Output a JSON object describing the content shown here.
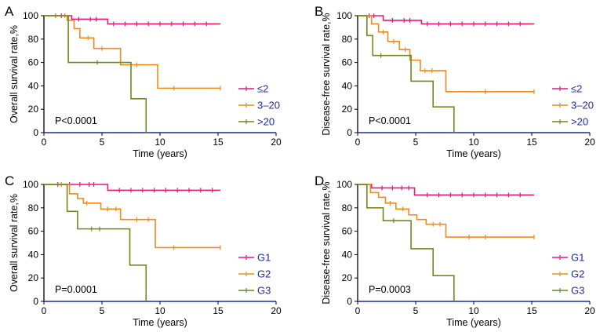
{
  "colors": {
    "series1": "#e5197a",
    "series2": "#f08a1c",
    "series3": "#6e8a1c",
    "axis": "#000000",
    "baseline": "#1f2a9e"
  },
  "chart_data": [
    {
      "type": "line",
      "panel": "A",
      "ylabel": "Overall survival rate,%",
      "xlabel": "Time (years)",
      "xlim": [
        0,
        20
      ],
      "ylim": [
        0,
        100
      ],
      "xticks": [
        "0",
        "5",
        "10",
        "15",
        "20"
      ],
      "yticks": [
        "0",
        "20",
        "40",
        "60",
        "80",
        "100"
      ],
      "pvalue": "P<0.0001",
      "legend_position": "right",
      "series": [
        {
          "name": "≤2",
          "steps": [
            [
              0,
              100
            ],
            [
              2.4,
              97
            ],
            [
              5.5,
              93
            ],
            [
              15.2,
              93
            ]
          ],
          "censors": [
            [
              1,
              100
            ],
            [
              1.5,
              100
            ],
            [
              3,
              97
            ],
            [
              4,
              97
            ],
            [
              4.5,
              97
            ],
            [
              6,
              93
            ],
            [
              7,
              93
            ],
            [
              8,
              93
            ],
            [
              9,
              93
            ],
            [
              10,
              93
            ],
            [
              11,
              93
            ],
            [
              12,
              93
            ],
            [
              13,
              93
            ],
            [
              14,
              93
            ]
          ]
        },
        {
          "name": "3–20",
          "steps": [
            [
              0,
              100
            ],
            [
              2,
              96
            ],
            [
              2.6,
              89
            ],
            [
              3.1,
              81
            ],
            [
              4.3,
              72
            ],
            [
              5.7,
              72
            ],
            [
              6.6,
              58
            ],
            [
              9.8,
              38
            ],
            [
              15.2,
              38
            ]
          ],
          "censors": [
            [
              1,
              100
            ],
            [
              1.8,
              100
            ],
            [
              3.8,
              81
            ],
            [
              5,
              72
            ],
            [
              8,
              58
            ],
            [
              11.2,
              38
            ],
            [
              15.2,
              38
            ]
          ]
        },
        {
          "name": ">20",
          "steps": [
            [
              0,
              100
            ],
            [
              2.1,
              60
            ],
            [
              6.3,
              60
            ],
            [
              7.5,
              29
            ],
            [
              8.8,
              0
            ]
          ],
          "censors": [
            [
              4.6,
              60
            ]
          ]
        }
      ]
    },
    {
      "type": "line",
      "panel": "B",
      "ylabel": "Disease-free survival rate,%",
      "xlabel": "Time (years)",
      "xlim": [
        0,
        20
      ],
      "ylim": [
        0,
        100
      ],
      "xticks": [
        "0",
        "5",
        "10",
        "15",
        "20"
      ],
      "yticks": [
        "0",
        "20",
        "40",
        "60",
        "80",
        "100"
      ],
      "pvalue": "P<0.0001",
      "legend_position": "right",
      "series": [
        {
          "name": "≤2",
          "steps": [
            [
              0,
              100
            ],
            [
              2.2,
              96
            ],
            [
              5.5,
              93
            ],
            [
              15.2,
              93
            ]
          ],
          "censors": [
            [
              1,
              100
            ],
            [
              1.4,
              100
            ],
            [
              3,
              96
            ],
            [
              4,
              96
            ],
            [
              4.5,
              96
            ],
            [
              6,
              93
            ],
            [
              7,
              93
            ],
            [
              8,
              93
            ],
            [
              9,
              93
            ],
            [
              10,
              93
            ],
            [
              11,
              93
            ],
            [
              12,
              93
            ],
            [
              13,
              93
            ],
            [
              14,
              93
            ]
          ]
        },
        {
          "name": "3–20",
          "steps": [
            [
              0,
              100
            ],
            [
              1.2,
              93
            ],
            [
              1.8,
              86
            ],
            [
              2.6,
              78
            ],
            [
              3.6,
              71
            ],
            [
              4.5,
              62
            ],
            [
              5.4,
              53
            ],
            [
              6.9,
              53
            ],
            [
              7.6,
              35
            ],
            [
              15.2,
              35
            ]
          ],
          "censors": [
            [
              2.2,
              86
            ],
            [
              3.1,
              78
            ],
            [
              4.1,
              71
            ],
            [
              5.8,
              53
            ],
            [
              6.4,
              53
            ],
            [
              11,
              35
            ],
            [
              15.2,
              35
            ]
          ]
        },
        {
          "name": ">20",
          "steps": [
            [
              0,
              100
            ],
            [
              0.8,
              83
            ],
            [
              1.3,
              66
            ],
            [
              4.6,
              44
            ],
            [
              6.5,
              22
            ],
            [
              8.3,
              0
            ]
          ],
          "censors": [
            [
              2,
              66
            ]
          ]
        }
      ]
    },
    {
      "type": "line",
      "panel": "C",
      "ylabel": "Overall survival rate,%",
      "xlabel": "Time (years)",
      "xlim": [
        0,
        20
      ],
      "ylim": [
        0,
        100
      ],
      "xticks": [
        "0",
        "5",
        "10",
        "15",
        "20"
      ],
      "yticks": [
        "0",
        "20",
        "40",
        "60",
        "80",
        "100"
      ],
      "pvalue": "P=0.0001",
      "legend_position": "right",
      "series": [
        {
          "name": "G1",
          "steps": [
            [
              0,
              100
            ],
            [
              5.5,
              95
            ],
            [
              15.2,
              95
            ]
          ],
          "censors": [
            [
              1.2,
              100
            ],
            [
              2.2,
              100
            ],
            [
              3.1,
              100
            ],
            [
              3.9,
              100
            ],
            [
              4.3,
              100
            ],
            [
              6.5,
              95
            ],
            [
              7.5,
              95
            ],
            [
              8.5,
              95
            ],
            [
              9.5,
              95
            ],
            [
              10.5,
              95
            ],
            [
              11.5,
              95
            ],
            [
              12.5,
              95
            ],
            [
              13.5,
              95
            ],
            [
              14.5,
              95
            ]
          ]
        },
        {
          "name": "G2",
          "steps": [
            [
              0,
              100
            ],
            [
              2.2,
              92
            ],
            [
              2.9,
              88
            ],
            [
              3.4,
              84
            ],
            [
              4.9,
              79
            ],
            [
              6.6,
              70
            ],
            [
              9.6,
              46
            ],
            [
              15.2,
              46
            ]
          ],
          "censors": [
            [
              1.5,
              100
            ],
            [
              3.7,
              84
            ],
            [
              5.5,
              79
            ],
            [
              6.2,
              79
            ],
            [
              8,
              70
            ],
            [
              9,
              70
            ],
            [
              11.2,
              46
            ],
            [
              15.2,
              46
            ]
          ]
        },
        {
          "name": "G3",
          "steps": [
            [
              0,
              100
            ],
            [
              2,
              77
            ],
            [
              2.9,
              62
            ],
            [
              7.4,
              31
            ],
            [
              8.8,
              0
            ]
          ],
          "censors": [
            [
              4.1,
              62
            ],
            [
              4.8,
              62
            ]
          ]
        }
      ]
    },
    {
      "type": "line",
      "panel": "D",
      "ylabel": "Disease-free survival rate,%",
      "xlabel": "Time (years)",
      "xlim": [
        0,
        20
      ],
      "ylim": [
        0,
        100
      ],
      "xticks": [
        "0",
        "5",
        "10",
        "15",
        "20"
      ],
      "yticks": [
        "0",
        "20",
        "40",
        "60",
        "80",
        "100"
      ],
      "pvalue": "P=0.0003",
      "legend_position": "right",
      "series": [
        {
          "name": "G1",
          "steps": [
            [
              0,
              100
            ],
            [
              1.2,
              97
            ],
            [
              4.9,
              91
            ],
            [
              15.2,
              91
            ]
          ],
          "censors": [
            [
              2.1,
              97
            ],
            [
              3,
              97
            ],
            [
              3.8,
              97
            ],
            [
              4.4,
              97
            ],
            [
              6,
              91
            ],
            [
              7,
              91
            ],
            [
              8,
              91
            ],
            [
              9,
              91
            ],
            [
              10,
              91
            ],
            [
              11,
              91
            ],
            [
              12,
              91
            ],
            [
              13,
              91
            ],
            [
              14,
              91
            ]
          ]
        },
        {
          "name": "G2",
          "steps": [
            [
              0,
              100
            ],
            [
              1.1,
              93
            ],
            [
              1.8,
              89
            ],
            [
              2.4,
              84
            ],
            [
              3.3,
              79
            ],
            [
              4.4,
              74
            ],
            [
              5.1,
              70
            ],
            [
              5.9,
              66
            ],
            [
              7.6,
              55
            ],
            [
              15.2,
              55
            ]
          ],
          "censors": [
            [
              2.8,
              84
            ],
            [
              3.9,
              79
            ],
            [
              6.5,
              66
            ],
            [
              7.1,
              66
            ],
            [
              9.6,
              55
            ],
            [
              11,
              55
            ],
            [
              15.2,
              55
            ]
          ]
        },
        {
          "name": "G3",
          "steps": [
            [
              0,
              100
            ],
            [
              0.8,
              80
            ],
            [
              2.2,
              69
            ],
            [
              4.6,
              45
            ],
            [
              6.5,
              22
            ],
            [
              8.3,
              0
            ]
          ],
          "censors": [
            [
              3.1,
              69
            ]
          ]
        }
      ]
    }
  ]
}
